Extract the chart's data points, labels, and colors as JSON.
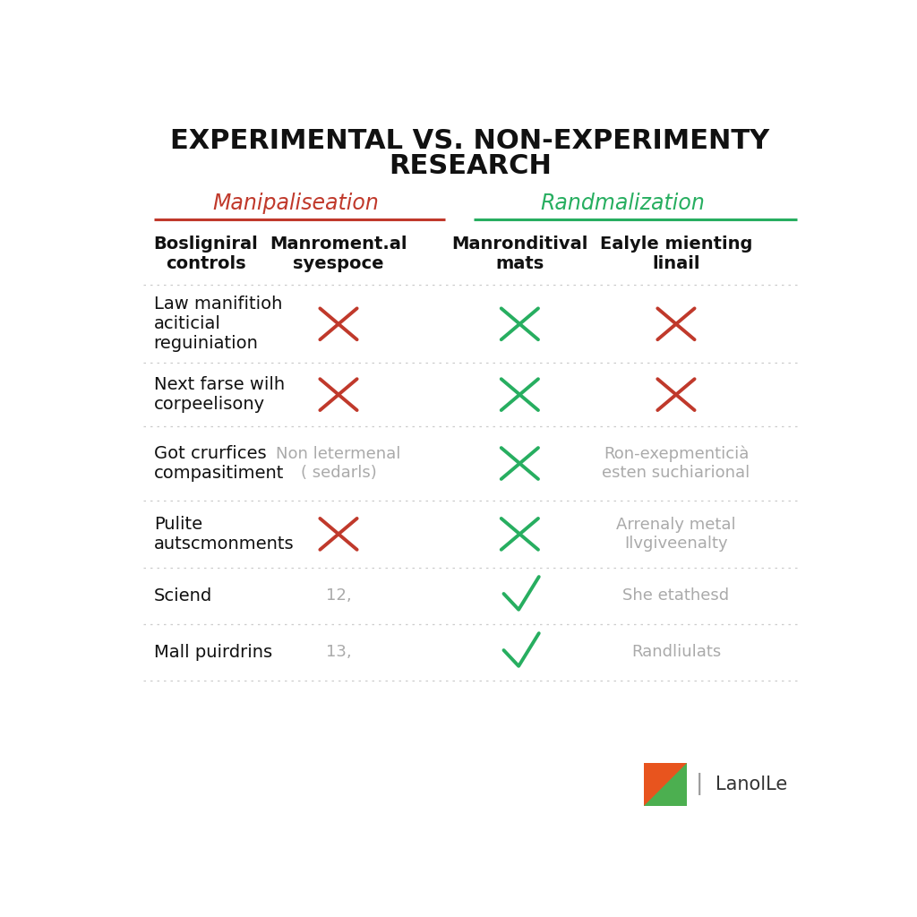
{
  "title_line1": "EXPERIMENTAL VS. NON-EXPERIMENTY",
  "title_line2": "RESEARCH",
  "section_left_label": "Manipaliseation",
  "section_right_label": "Randmalization",
  "section_left_color": "#c0392b",
  "section_right_color": "#27ae60",
  "col_headers": [
    "Bosligniral\ncontrols",
    "Manroment.al\nsyespoce",
    "Manronditival\nmats",
    "Ealyle mienting\nlinail"
  ],
  "rows": [
    {
      "label": "Law manifitioh\naciticial\nreguiniation",
      "col1": "red_x",
      "col2": "green_x",
      "col3": "red_x"
    },
    {
      "label": "Next farse wilh\ncorpeelisony",
      "col1": "red_x",
      "col2": "green_x",
      "col3": "red_x"
    },
    {
      "label": "Got crurfices\ncompasitiment",
      "col1": "Non letermenal\n( sedarls)",
      "col2": "green_x",
      "col3": "Ron-exepmenticià\nesten suchiarional"
    },
    {
      "label": "Pulite\nautscmonments",
      "col1": "red_x",
      "col2": "green_x",
      "col3": "Arrenaly metal\nIlvgiveenalty"
    },
    {
      "label": "Sciend",
      "col1": "12,",
      "col2": "green_check",
      "col3": "She etathesd"
    },
    {
      "label": "Mall puirdrins",
      "col1": "13,",
      "col2": "green_check",
      "col3": "Randliulats"
    }
  ],
  "background_color": "#ffffff",
  "title_fontsize": 22,
  "section_label_fontsize": 17,
  "header_fontsize": 14,
  "row_label_fontsize": 14,
  "cell_fontsize": 13,
  "logo_text": "LanolLe"
}
